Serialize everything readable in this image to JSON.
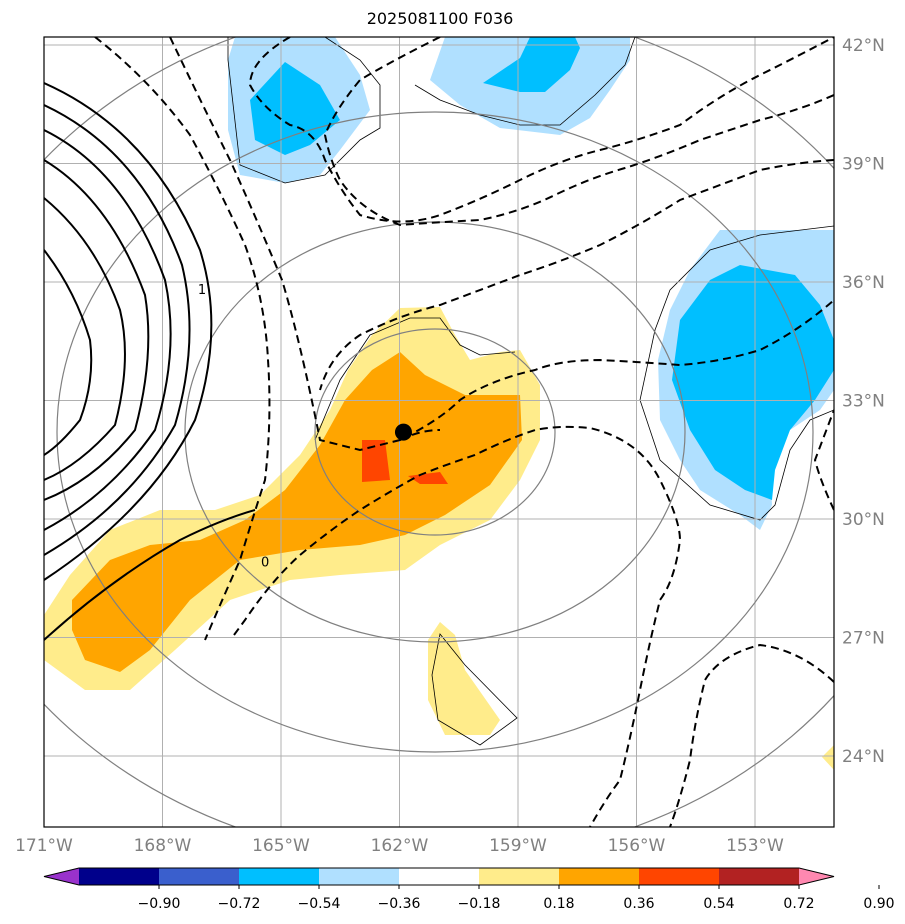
{
  "title": "2025081100 F036",
  "map": {
    "lon_range": [
      -171,
      -151
    ],
    "lat_range": [
      22,
      42
    ],
    "gridline_color": "#b0b0b0",
    "lon_ticks": [
      {
        "value": -171,
        "label": "171°W"
      },
      {
        "value": -168,
        "label": "168°W"
      },
      {
        "value": -165,
        "label": "165°W"
      },
      {
        "value": -162,
        "label": "162°W"
      },
      {
        "value": -159,
        "label": "159°W"
      },
      {
        "value": -156,
        "label": "156°W"
      },
      {
        "value": -153,
        "label": "153°W"
      }
    ],
    "lat_ticks": [
      {
        "value": 42,
        "label": "42°N"
      },
      {
        "value": 39,
        "label": "39°N"
      },
      {
        "value": 36,
        "label": "36°N"
      },
      {
        "value": 33,
        "label": "33°N"
      },
      {
        "value": 30,
        "label": "30°N"
      },
      {
        "value": 27,
        "label": "27°N"
      },
      {
        "value": 24,
        "label": "24°N"
      }
    ],
    "center_marker": {
      "lon": -161.9,
      "lat": 32.2,
      "color": "#000000"
    },
    "contour_labels": [
      {
        "text": "1",
        "lon": -167.0,
        "lat": 36.0
      },
      {
        "text": "0",
        "lon": -165.4,
        "lat": 29.1
      }
    ]
  },
  "colorbar": {
    "colors": [
      "#9932cc",
      "#00008b",
      "#3a5fcd",
      "#00bfff",
      "#b0e0ff",
      "#ffffff",
      "#ffec8b",
      "#ffa500",
      "#ff4500",
      "#b22222",
      "#ff88b0"
    ],
    "tick_labels": [
      "−0.90",
      "−0.72",
      "−0.54",
      "−0.36",
      "−0.18",
      "0.18",
      "0.36",
      "0.54",
      "0.72",
      "0.90"
    ]
  }
}
